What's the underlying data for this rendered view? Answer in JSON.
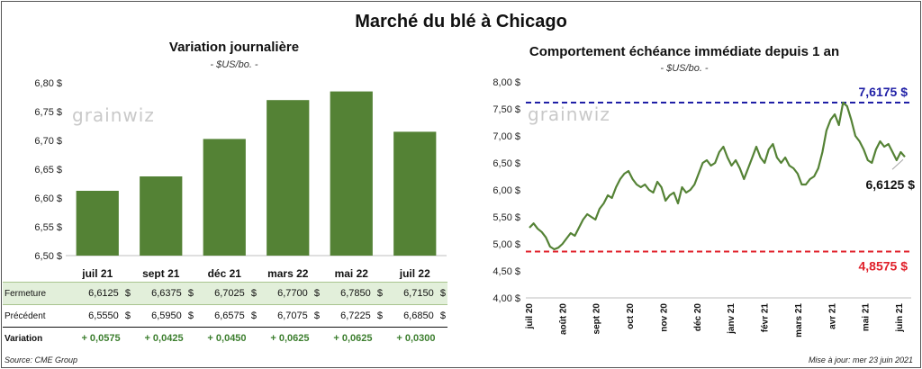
{
  "title": "Marché du blé à Chicago",
  "left_panel": {
    "title": "Variation journalière",
    "unit": "- $US/bo. -"
  },
  "right_panel": {
    "title": "Comportement échéance immédiate depuis 1 an",
    "unit": "- $US/bo. -",
    "max_label": "7,6175 $",
    "min_label": "4,8575 $",
    "last_label": "6,6125 $"
  },
  "logo_text": "grainwiz",
  "table": {
    "rows": [
      {
        "label": "Fermeture",
        "values": [
          "6,6125",
          "6,6375",
          "6,7025",
          "6,7700",
          "6,7850",
          "6,7150"
        ],
        "currency": "$"
      },
      {
        "label": "Précédent",
        "values": [
          "6,5550",
          "6,5950",
          "6,6575",
          "6,7075",
          "6,7225",
          "6,6850"
        ],
        "currency": "$"
      }
    ],
    "variation_label": "Variation",
    "variations": [
      "+ 0,0575",
      "+ 0,0425",
      "+ 0,0450",
      "+ 0,0625",
      "+ 0,0625",
      "+ 0,0300"
    ]
  },
  "footer": {
    "source": "Source: CME Group",
    "updated": "Mise à jour: mer 23 juin 2021"
  },
  "colors": {
    "bar": "#548235",
    "line": "#548235",
    "max_line": "#1f1fa6",
    "min_line": "#e0202a",
    "variation_text": "#3d7f2f",
    "fermeture_row": "#e2efda"
  },
  "chart_data": [
    {
      "type": "bar",
      "categories": [
        "juil 21",
        "sept 21",
        "déc 21",
        "mars 22",
        "mai 22",
        "juil 22"
      ],
      "values": [
        6.6125,
        6.6375,
        6.7025,
        6.77,
        6.785,
        6.715
      ],
      "ylim": [
        6.5,
        6.8
      ],
      "yticks": [
        6.5,
        6.55,
        6.6,
        6.65,
        6.7,
        6.75,
        6.8
      ],
      "ytick_labels": [
        "6,50 $",
        "6,55 $",
        "6,60 $",
        "6,65 $",
        "6,70 $",
        "6,75 $",
        "6,80 $"
      ],
      "title": "Variation journalière",
      "ylabel": "",
      "grid": false
    },
    {
      "type": "line",
      "title": "Comportement échéance immédiate depuis 1 an",
      "ylim": [
        4.0,
        8.0
      ],
      "yticks": [
        4.0,
        4.5,
        5.0,
        5.5,
        6.0,
        6.5,
        7.0,
        7.5,
        8.0
      ],
      "ytick_labels": [
        "4,00 $",
        "4,50 $",
        "5,00 $",
        "5,50 $",
        "6,00 $",
        "6,50 $",
        "7,00 $",
        "7,50 $",
        "8,00 $"
      ],
      "x_ticks": [
        "juil 20",
        "août 20",
        "sept 20",
        "oct 20",
        "nov 20",
        "déc 20",
        "janv 21",
        "févr 21",
        "mars 21",
        "avr 21",
        "mai 21",
        "juin 21"
      ],
      "grid": false,
      "reference_lines": [
        {
          "label": "7,6175 $",
          "value": 7.6175
        },
        {
          "label": "4,8575 $",
          "value": 4.8575
        }
      ],
      "last_value_label": "6,6125 $",
      "series": [
        {
          "values": [
            5.3,
            5.38,
            5.28,
            5.22,
            5.12,
            4.95,
            4.9,
            4.93,
            5.0,
            5.1,
            5.2,
            5.15,
            5.3,
            5.45,
            5.55,
            5.5,
            5.45,
            5.65,
            5.75,
            5.9,
            5.85,
            6.05,
            6.2,
            6.3,
            6.35,
            6.2,
            6.1,
            6.05,
            6.1,
            6.0,
            5.95,
            6.15,
            6.05,
            5.8,
            5.9,
            5.95,
            5.75,
            6.05,
            5.95,
            6.0,
            6.1,
            6.3,
            6.5,
            6.55,
            6.45,
            6.5,
            6.7,
            6.8,
            6.6,
            6.45,
            6.55,
            6.4,
            6.2,
            6.4,
            6.6,
            6.8,
            6.6,
            6.5,
            6.75,
            6.85,
            6.6,
            6.5,
            6.6,
            6.45,
            6.4,
            6.3,
            6.1,
            6.1,
            6.2,
            6.25,
            6.4,
            6.7,
            7.1,
            7.3,
            7.4,
            7.2,
            7.6175,
            7.55,
            7.3,
            7.0,
            6.9,
            6.75,
            6.55,
            6.5,
            6.75,
            6.9,
            6.8,
            6.85,
            6.7,
            6.55,
            6.7,
            6.6125
          ]
        }
      ]
    }
  ]
}
